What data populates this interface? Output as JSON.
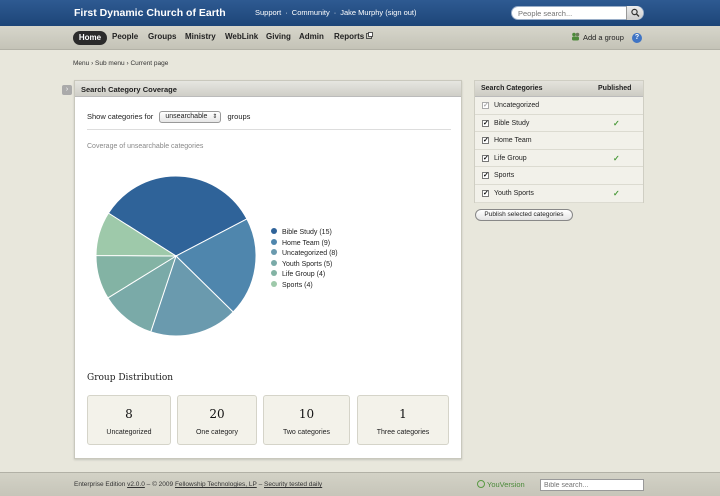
{
  "header": {
    "brand": "First Dynamic Church of Earth",
    "links": [
      "Support",
      "Community",
      "Jake Murphy (sign out)"
    ],
    "search_placeholder": "People search..."
  },
  "nav": {
    "items": [
      "Home",
      "People",
      "Groups",
      "Ministry",
      "WebLink",
      "Giving",
      "Admin",
      "Reports"
    ],
    "active": "Home",
    "add_group": "Add a group",
    "help": "?"
  },
  "breadcrumb": "Menu › Sub menu › Current page",
  "main": {
    "title": "Search Category Coverage",
    "show_prefix": "Show categories for",
    "select_value": "unsearchable",
    "show_suffix": "groups",
    "chart_title": "Coverage of unsearchable categories",
    "distribution_title": "Group Distribution",
    "cards": [
      {
        "value": "8",
        "label": "Uncategorized"
      },
      {
        "value": "20",
        "label": "One category"
      },
      {
        "value": "10",
        "label": "Two categories"
      },
      {
        "value": "1",
        "label": "Three categories"
      }
    ]
  },
  "chart_data": {
    "type": "pie",
    "title": "Coverage of unsearchable categories",
    "legend_position": "right",
    "slices": [
      {
        "label": "Bible Study (15)",
        "value": 15,
        "color": "#2f6399"
      },
      {
        "label": "Home Team (9)",
        "value": 9,
        "color": "#4f86ad"
      },
      {
        "label": "Uncategorized (8)",
        "value": 8,
        "color": "#6a9aae"
      },
      {
        "label": "Youth Sports (5)",
        "value": 5,
        "color": "#7aaaa8"
      },
      {
        "label": "Life Group (4)",
        "value": 4,
        "color": "#83b3a4"
      },
      {
        "label": "Sports (4)",
        "value": 4,
        "color": "#9ec9aa"
      }
    ]
  },
  "sidebar": {
    "col1": "Search Categories",
    "col2": "Published",
    "rows": [
      {
        "name": "Uncategorized",
        "checked": true,
        "disabled": true,
        "published": false
      },
      {
        "name": "Bible Study",
        "checked": true,
        "disabled": false,
        "published": true
      },
      {
        "name": "Home Team",
        "checked": true,
        "disabled": false,
        "published": false
      },
      {
        "name": "Life Group",
        "checked": true,
        "disabled": false,
        "published": true
      },
      {
        "name": "Sports",
        "checked": true,
        "disabled": false,
        "published": false
      },
      {
        "name": "Youth Sports",
        "checked": true,
        "disabled": false,
        "published": true
      }
    ],
    "publish_button": "Publish selected categories"
  },
  "footer": {
    "edition_prefix": "Enterprise Edition",
    "version": "v2.0.0",
    "copyright": "– © 2009",
    "company": "Fellowship Technologies, LP",
    "dash": "–",
    "security": "Security tested daily",
    "youversion": "YouVersion",
    "bible_placeholder": "Bible search..."
  }
}
